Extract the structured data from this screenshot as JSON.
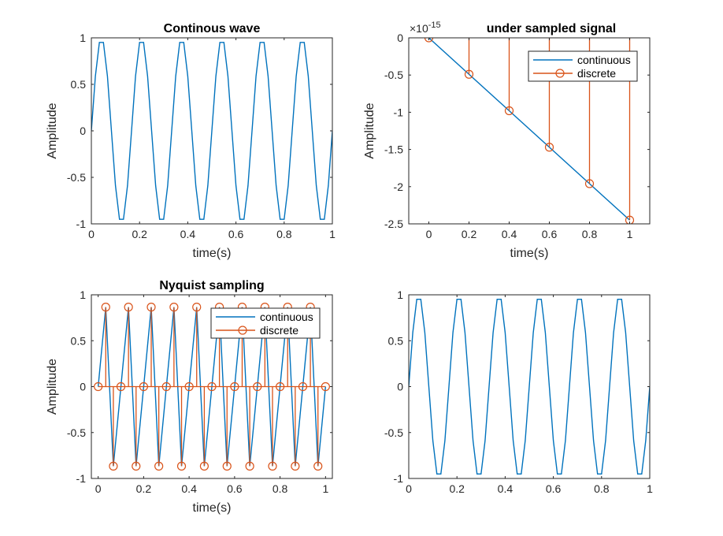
{
  "figure": {
    "background": "#ffffff"
  },
  "colors": {
    "continuous": "#0072BD",
    "discrete": "#D95319",
    "axes": "#262626"
  },
  "chart_data": [
    {
      "id": "continous-wave",
      "type": "line",
      "title": "Continous wave",
      "xlabel": "time(s)",
      "ylabel": "Amplitude",
      "xlim": [
        0,
        1
      ],
      "ylim": [
        -1,
        1
      ],
      "xticks": [
        0,
        0.2,
        0.4,
        0.6,
        0.8,
        1
      ],
      "xtick_labels": [
        "0",
        "0.2",
        "0.4",
        "0.6",
        "0.8",
        "1"
      ],
      "yticks": [
        -1,
        -0.5,
        0,
        0.5,
        1
      ],
      "ytick_labels": [
        "-1",
        "-0.5",
        "0",
        "0.5",
        "1"
      ],
      "series": [
        {
          "kind": "line",
          "color": "#0072BD",
          "x": [
            0,
            0.0167,
            0.0333,
            0.05,
            0.0667,
            0.0833,
            0.1,
            0.1167,
            0.1333,
            0.15,
            0.1667,
            0.1833,
            0.2,
            0.2167,
            0.2333,
            0.25,
            0.2667,
            0.2833,
            0.3,
            0.3167,
            0.3333,
            0.35,
            0.3667,
            0.3833,
            0.4,
            0.4167,
            0.4333,
            0.45,
            0.4667,
            0.4833,
            0.5,
            0.5167,
            0.5333,
            0.55,
            0.5667,
            0.5833,
            0.6,
            0.6167,
            0.6333,
            0.65,
            0.6667,
            0.6833,
            0.7,
            0.7167,
            0.7333,
            0.75,
            0.7667,
            0.7833,
            0.8,
            0.8167,
            0.8333,
            0.85,
            0.8667,
            0.8833,
            0.9,
            0.9167,
            0.9333,
            0.95,
            0.9667,
            0.9833,
            1
          ],
          "y": [
            0,
            0.588,
            0.951,
            0.951,
            0.588,
            0,
            -0.588,
            -0.951,
            -0.951,
            -0.588,
            0,
            0.588,
            0.951,
            0.951,
            0.588,
            0,
            -0.588,
            -0.951,
            -0.951,
            -0.588,
            0,
            0.588,
            0.951,
            0.951,
            0.588,
            0,
            -0.588,
            -0.951,
            -0.951,
            -0.588,
            0,
            0.588,
            0.951,
            0.951,
            0.588,
            0,
            -0.588,
            -0.951,
            -0.951,
            -0.588,
            0,
            0.588,
            0.951,
            0.951,
            0.588,
            0,
            -0.588,
            -0.951,
            -0.951,
            -0.588,
            0,
            0.588,
            0.951,
            0.951,
            0.588,
            0,
            -0.588,
            -0.951,
            -0.951,
            -0.588,
            0
          ]
        }
      ]
    },
    {
      "id": "under-sampled",
      "type": "line",
      "title": "under sampled signal",
      "exponent_label": "×10",
      "exponent_power": "-15",
      "xlabel": "time(s)",
      "ylabel": "Amplitude",
      "xlim": [
        -0.1,
        1.1
      ],
      "ylim": [
        -2.5,
        0
      ],
      "xticks": [
        0,
        0.2,
        0.4,
        0.6,
        0.8,
        1
      ],
      "xtick_labels": [
        "0",
        "0.2",
        "0.4",
        "0.6",
        "0.8",
        "1"
      ],
      "yticks": [
        -2.5,
        -2,
        -1.5,
        -1,
        -0.5,
        0
      ],
      "ytick_labels": [
        "-2.5",
        "-2",
        "-1.5",
        "-1",
        "-0.5",
        "0"
      ],
      "legend": {
        "position": "top-right",
        "entries": [
          "continuous",
          "discrete"
        ]
      },
      "series": [
        {
          "kind": "line",
          "color": "#0072BD",
          "x": [
            0,
            1
          ],
          "y": [
            0,
            -2.45
          ]
        },
        {
          "kind": "stem",
          "color": "#D95319",
          "x": [
            0,
            0.2,
            0.4,
            0.6,
            0.8,
            1
          ],
          "y": [
            0,
            -0.49,
            -0.98,
            -1.47,
            -1.96,
            -2.45
          ],
          "stem_top": 0
        }
      ]
    },
    {
      "id": "nyquist",
      "type": "line",
      "title": "Nyquist sampling",
      "xlabel": "time(s)",
      "ylabel": "Amplitude",
      "xlim": [
        -0.03,
        1.03
      ],
      "ylim": [
        -1,
        1
      ],
      "xticks": [
        0,
        0.2,
        0.4,
        0.6,
        0.8,
        1
      ],
      "xtick_labels": [
        "0",
        "0.2",
        "0.4",
        "0.6",
        "0.8",
        "1"
      ],
      "yticks": [
        -1,
        -0.5,
        0,
        0.5,
        1
      ],
      "ytick_labels": [
        "-1",
        "-0.5",
        "0",
        "0.5",
        "1"
      ],
      "legend": {
        "position": "top-right",
        "entries": [
          "continuous",
          "discrete"
        ]
      },
      "series": [
        {
          "kind": "line",
          "color": "#0072BD",
          "x": [
            0,
            0.0333,
            0.0667,
            0.1,
            0.1333,
            0.1667,
            0.2,
            0.2333,
            0.2667,
            0.3,
            0.3333,
            0.3667,
            0.4,
            0.4333,
            0.4667,
            0.5,
            0.5333,
            0.5667,
            0.6,
            0.6333,
            0.6667,
            0.7,
            0.7333,
            0.7667,
            0.8,
            0.8333,
            0.8667,
            0.9,
            0.9333,
            0.9667,
            1
          ],
          "y": [
            0,
            0.866,
            -0.866,
            0,
            0.866,
            -0.866,
            0,
            0.866,
            -0.866,
            0,
            0.866,
            -0.866,
            0,
            0.866,
            -0.866,
            0,
            0.866,
            -0.866,
            0,
            0.866,
            -0.866,
            0,
            0.866,
            -0.866,
            0,
            0.866,
            -0.866,
            0,
            0.866,
            -0.866,
            0
          ]
        },
        {
          "kind": "stem",
          "color": "#D95319",
          "x": [
            0,
            0.0333,
            0.0667,
            0.1,
            0.1333,
            0.1667,
            0.2,
            0.2333,
            0.2667,
            0.3,
            0.3333,
            0.3667,
            0.4,
            0.4333,
            0.4667,
            0.5,
            0.5333,
            0.5667,
            0.6,
            0.6333,
            0.6667,
            0.7,
            0.7333,
            0.7667,
            0.8,
            0.8333,
            0.8667,
            0.9,
            0.9333,
            0.9667,
            1
          ],
          "y": [
            0,
            0.866,
            -0.866,
            0,
            0.866,
            -0.866,
            0,
            0.866,
            -0.866,
            0,
            0.866,
            -0.866,
            0,
            0.866,
            -0.866,
            0,
            0.866,
            -0.866,
            0,
            0.866,
            -0.866,
            0,
            0.866,
            -0.866,
            0,
            0.866,
            -0.866,
            0,
            0.866,
            -0.866,
            0
          ],
          "stem_base": 0
        }
      ]
    },
    {
      "id": "bottom-right",
      "type": "line",
      "title": "",
      "xlabel": "",
      "ylabel": "",
      "xlim": [
        0,
        1
      ],
      "ylim": [
        -1,
        1
      ],
      "xticks": [
        0,
        0.2,
        0.4,
        0.6,
        0.8,
        1
      ],
      "xtick_labels": [
        "0",
        "0.2",
        "0.4",
        "0.6",
        "0.8",
        "1"
      ],
      "yticks": [
        -1,
        -0.5,
        0,
        0.5,
        1
      ],
      "ytick_labels": [
        "-1",
        "-0.5",
        "0",
        "0.5",
        "1"
      ],
      "series": [
        {
          "kind": "line",
          "color": "#0072BD",
          "x": [
            0,
            0.0167,
            0.0333,
            0.05,
            0.0667,
            0.0833,
            0.1,
            0.1167,
            0.1333,
            0.15,
            0.1667,
            0.1833,
            0.2,
            0.2167,
            0.2333,
            0.25,
            0.2667,
            0.2833,
            0.3,
            0.3167,
            0.3333,
            0.35,
            0.3667,
            0.3833,
            0.4,
            0.4167,
            0.4333,
            0.45,
            0.4667,
            0.4833,
            0.5,
            0.5167,
            0.5333,
            0.55,
            0.5667,
            0.5833,
            0.6,
            0.6167,
            0.6333,
            0.65,
            0.6667,
            0.6833,
            0.7,
            0.7167,
            0.7333,
            0.75,
            0.7667,
            0.7833,
            0.8,
            0.8167,
            0.8333,
            0.85,
            0.8667,
            0.8833,
            0.9,
            0.9167,
            0.9333,
            0.95,
            0.9667,
            0.9833,
            1
          ],
          "y": [
            0,
            0.588,
            0.951,
            0.951,
            0.588,
            0,
            -0.588,
            -0.951,
            -0.951,
            -0.588,
            0,
            0.588,
            0.951,
            0.951,
            0.588,
            0,
            -0.588,
            -0.951,
            -0.951,
            -0.588,
            0,
            0.588,
            0.951,
            0.951,
            0.588,
            0,
            -0.588,
            -0.951,
            -0.951,
            -0.588,
            0,
            0.588,
            0.951,
            0.951,
            0.588,
            0,
            -0.588,
            -0.951,
            -0.951,
            -0.588,
            0,
            0.588,
            0.951,
            0.951,
            0.588,
            0,
            -0.588,
            -0.951,
            -0.951,
            -0.588,
            0,
            0.588,
            0.951,
            0.951,
            0.588,
            0,
            -0.588,
            -0.951,
            -0.951,
            -0.588,
            0
          ]
        }
      ]
    }
  ]
}
